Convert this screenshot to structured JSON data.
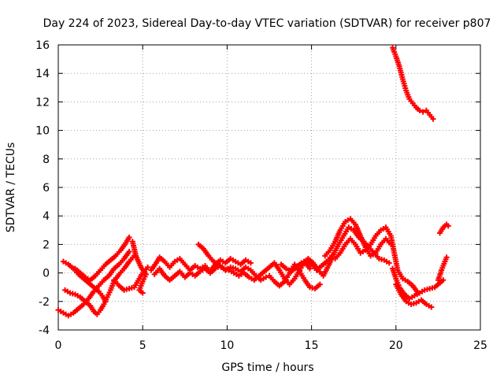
{
  "chart_data": {
    "type": "scatter",
    "title": "Day 224 of 2023, Sidereal Day-to-day VTEC variation (SDTVAR) for receiver p807",
    "xlabel": "GPS time / hours",
    "ylabel": "SDTVAR / TECUs",
    "xlim": [
      0,
      25
    ],
    "ylim": [
      -4,
      16
    ],
    "xticks": [
      0,
      5,
      10,
      15,
      20,
      25
    ],
    "yticks": [
      -4,
      -2,
      0,
      2,
      4,
      6,
      8,
      10,
      12,
      14,
      16
    ],
    "grid": true,
    "marker": "plus",
    "color": "#ff0000",
    "series": [
      {
        "name": "s1",
        "points": [
          [
            0.0,
            -2.6
          ],
          [
            0.3,
            -2.8
          ],
          [
            0.6,
            -3.0
          ],
          [
            0.9,
            -2.8
          ],
          [
            1.2,
            -2.5
          ],
          [
            1.5,
            -2.2
          ],
          [
            1.8,
            -1.8
          ],
          [
            2.1,
            -1.3
          ],
          [
            2.4,
            -0.9
          ],
          [
            2.7,
            -0.5
          ],
          [
            3.0,
            -0.2
          ],
          [
            3.3,
            0.3
          ],
          [
            3.6,
            0.6
          ],
          [
            3.9,
            1.0
          ],
          [
            4.2,
            1.5
          ]
        ]
      },
      {
        "name": "s2",
        "points": [
          [
            0.3,
            0.8
          ],
          [
            0.6,
            0.6
          ],
          [
            0.9,
            0.3
          ],
          [
            1.2,
            -0.1
          ],
          [
            1.5,
            -0.4
          ],
          [
            1.8,
            -0.7
          ],
          [
            2.1,
            -1.0
          ],
          [
            2.4,
            -1.3
          ],
          [
            2.6,
            -1.6
          ],
          [
            2.8,
            -2.0
          ]
        ]
      },
      {
        "name": "s3",
        "points": [
          [
            0.4,
            -1.2
          ],
          [
            0.7,
            -1.4
          ],
          [
            1.0,
            -1.5
          ],
          [
            1.3,
            -1.7
          ],
          [
            1.6,
            -2.0
          ],
          [
            1.9,
            -2.3
          ],
          [
            2.1,
            -2.7
          ],
          [
            2.3,
            -2.9
          ],
          [
            2.5,
            -2.6
          ],
          [
            2.7,
            -2.2
          ],
          [
            2.9,
            -1.7
          ],
          [
            3.1,
            -1.2
          ],
          [
            3.3,
            -0.6
          ],
          [
            3.6,
            -0.1
          ],
          [
            3.9,
            0.3
          ],
          [
            4.2,
            0.8
          ],
          [
            4.5,
            1.2
          ]
        ]
      },
      {
        "name": "s4",
        "points": [
          [
            1.0,
            0.3
          ],
          [
            1.3,
            0.0
          ],
          [
            1.6,
            -0.3
          ],
          [
            1.9,
            -0.5
          ],
          [
            2.2,
            -0.2
          ],
          [
            2.5,
            0.2
          ],
          [
            2.8,
            0.6
          ],
          [
            3.1,
            0.9
          ],
          [
            3.4,
            1.2
          ],
          [
            3.7,
            1.6
          ],
          [
            4.0,
            2.1
          ],
          [
            4.2,
            2.5
          ]
        ]
      },
      {
        "name": "s5",
        "points": [
          [
            3.3,
            -0.5
          ],
          [
            3.6,
            -0.9
          ],
          [
            3.9,
            -1.2
          ],
          [
            4.2,
            -1.1
          ],
          [
            4.5,
            -1.0
          ],
          [
            4.8,
            -0.4
          ],
          [
            5.0,
            0.0
          ],
          [
            5.3,
            0.4
          ]
        ]
      },
      {
        "name": "s6",
        "points": [
          [
            4.4,
            2.2
          ],
          [
            4.6,
            1.2
          ],
          [
            4.9,
            0.4
          ],
          [
            5.2,
            -0.1
          ],
          [
            5.0,
            -0.6
          ],
          [
            4.8,
            -1.2
          ],
          [
            5.0,
            -1.4
          ]
        ]
      },
      {
        "name": "s7",
        "points": [
          [
            5.5,
            0.2
          ],
          [
            5.8,
            0.7
          ],
          [
            6.0,
            1.1
          ],
          [
            6.3,
            0.8
          ],
          [
            6.6,
            0.4
          ],
          [
            6.9,
            0.8
          ],
          [
            7.2,
            1.0
          ],
          [
            7.5,
            0.6
          ],
          [
            7.8,
            0.2
          ],
          [
            8.1,
            0.5
          ],
          [
            8.4,
            0.3
          ],
          [
            8.7,
            0.5
          ],
          [
            9.0,
            0.1
          ],
          [
            9.3,
            0.6
          ],
          [
            9.6,
            0.9
          ],
          [
            9.9,
            0.7
          ],
          [
            10.2,
            1.0
          ],
          [
            10.5,
            0.8
          ],
          [
            10.8,
            0.6
          ],
          [
            11.1,
            0.9
          ],
          [
            11.4,
            0.7
          ]
        ]
      },
      {
        "name": "s8",
        "points": [
          [
            5.7,
            -0.1
          ],
          [
            6.0,
            0.3
          ],
          [
            6.3,
            -0.2
          ],
          [
            6.6,
            -0.5
          ],
          [
            6.9,
            -0.2
          ],
          [
            7.2,
            0.1
          ],
          [
            7.5,
            -0.3
          ],
          [
            7.8,
            0.0
          ],
          [
            8.1,
            -0.2
          ],
          [
            8.4,
            0.1
          ],
          [
            8.7,
            0.3
          ],
          [
            9.0,
            0.0
          ],
          [
            9.3,
            0.3
          ],
          [
            9.6,
            0.5
          ],
          [
            9.9,
            0.2
          ],
          [
            10.2,
            0.4
          ],
          [
            10.5,
            0.3
          ],
          [
            10.8,
            0.1
          ],
          [
            11.1,
            0.4
          ],
          [
            11.4,
            0.2
          ],
          [
            11.7,
            -0.2
          ],
          [
            12.0,
            -0.5
          ],
          [
            12.3,
            -0.3
          ]
        ]
      },
      {
        "name": "s9",
        "points": [
          [
            8.3,
            2.0
          ],
          [
            8.6,
            1.7
          ],
          [
            8.9,
            1.2
          ],
          [
            9.2,
            0.8
          ],
          [
            9.5,
            0.5
          ],
          [
            9.8,
            0.3
          ],
          [
            10.1,
            0.2
          ],
          [
            10.4,
            0.0
          ],
          [
            10.7,
            -0.2
          ],
          [
            11.0,
            0.0
          ],
          [
            11.3,
            -0.3
          ],
          [
            11.6,
            -0.5
          ],
          [
            11.9,
            -0.2
          ],
          [
            12.2,
            0.1
          ],
          [
            12.5,
            0.4
          ],
          [
            12.8,
            0.7
          ],
          [
            13.1,
            0.2
          ],
          [
            13.4,
            -0.4
          ],
          [
            13.7,
            -0.8
          ],
          [
            14.0,
            -0.4
          ],
          [
            14.3,
            0.2
          ],
          [
            14.6,
            0.8
          ],
          [
            14.9,
            0.3
          ]
        ]
      },
      {
        "name": "s10",
        "points": [
          [
            12.5,
            -0.2
          ],
          [
            12.8,
            -0.6
          ],
          [
            13.1,
            -0.9
          ],
          [
            13.4,
            -0.6
          ],
          [
            13.7,
            0.0
          ],
          [
            14.0,
            0.6
          ],
          [
            14.3,
            0.1
          ],
          [
            14.6,
            -0.5
          ],
          [
            14.9,
            -1.0
          ],
          [
            15.2,
            -1.1
          ],
          [
            15.5,
            -0.8
          ]
        ]
      },
      {
        "name": "s11",
        "points": [
          [
            13.2,
            0.6
          ],
          [
            13.5,
            0.3
          ],
          [
            13.8,
            0.1
          ],
          [
            14.1,
            0.4
          ],
          [
            14.4,
            0.7
          ],
          [
            14.7,
            0.9
          ],
          [
            15.0,
            0.6
          ],
          [
            15.3,
            0.2
          ],
          [
            15.6,
            0.5
          ],
          [
            15.9,
            0.8
          ],
          [
            16.2,
            1.2
          ]
        ]
      },
      {
        "name": "s12",
        "points": [
          [
            14.8,
            1.0
          ],
          [
            15.1,
            0.7
          ],
          [
            15.4,
            0.2
          ],
          [
            15.7,
            -0.2
          ],
          [
            16.0,
            0.5
          ],
          [
            16.3,
            1.3
          ],
          [
            16.6,
            2.0
          ],
          [
            16.9,
            2.6
          ],
          [
            17.2,
            3.2
          ],
          [
            17.5,
            3.0
          ],
          [
            17.8,
            2.5
          ],
          [
            18.1,
            2.2
          ],
          [
            18.4,
            1.8
          ],
          [
            18.7,
            1.4
          ],
          [
            19.0,
            1.0
          ],
          [
            19.3,
            0.9
          ],
          [
            19.6,
            0.7
          ]
        ]
      },
      {
        "name": "s13",
        "points": [
          [
            15.8,
            1.2
          ],
          [
            16.1,
            1.6
          ],
          [
            16.4,
            2.2
          ],
          [
            16.7,
            3.0
          ],
          [
            17.0,
            3.6
          ],
          [
            17.3,
            3.8
          ],
          [
            17.6,
            3.4
          ],
          [
            17.9,
            2.6
          ],
          [
            18.2,
            1.8
          ],
          [
            18.5,
            1.2
          ],
          [
            18.8,
            1.4
          ],
          [
            19.1,
            2.0
          ],
          [
            19.4,
            2.4
          ],
          [
            19.7,
            2.0
          ]
        ]
      },
      {
        "name": "s14",
        "points": [
          [
            16.4,
            1.0
          ],
          [
            16.7,
            1.4
          ],
          [
            17.0,
            2.0
          ],
          [
            17.3,
            2.4
          ],
          [
            17.6,
            2.0
          ],
          [
            17.9,
            1.4
          ],
          [
            18.2,
            1.6
          ],
          [
            18.5,
            2.0
          ],
          [
            18.8,
            2.6
          ],
          [
            19.1,
            3.0
          ],
          [
            19.4,
            3.2
          ],
          [
            19.7,
            2.6
          ],
          [
            19.9,
            1.4
          ],
          [
            20.1,
            0.2
          ],
          [
            20.4,
            -0.4
          ],
          [
            20.7,
            -0.6
          ],
          [
            21.0,
            -0.9
          ],
          [
            21.3,
            -1.4
          ]
        ]
      },
      {
        "name": "s15",
        "points": [
          [
            19.8,
            0.3
          ],
          [
            20.0,
            -0.4
          ],
          [
            20.2,
            -1.0
          ],
          [
            20.5,
            -1.5
          ],
          [
            20.8,
            -1.8
          ],
          [
            21.1,
            -1.6
          ],
          [
            21.4,
            -1.4
          ],
          [
            21.7,
            -1.2
          ],
          [
            22.0,
            -1.1
          ],
          [
            22.3,
            -1.0
          ],
          [
            22.6,
            -0.7
          ],
          [
            22.8,
            -0.5
          ]
        ]
      },
      {
        "name": "s16",
        "points": [
          [
            20.0,
            -0.8
          ],
          [
            20.3,
            -1.5
          ],
          [
            20.6,
            -2.0
          ],
          [
            20.9,
            -2.2
          ],
          [
            21.2,
            -2.1
          ],
          [
            21.5,
            -1.9
          ],
          [
            21.8,
            -2.2
          ],
          [
            22.1,
            -2.4
          ]
        ]
      },
      {
        "name": "s17",
        "points": [
          [
            22.5,
            -0.5
          ],
          [
            22.7,
            0.2
          ],
          [
            22.9,
            0.8
          ],
          [
            23.0,
            1.1
          ]
        ]
      },
      {
        "name": "s18",
        "points": [
          [
            22.6,
            2.8
          ],
          [
            22.8,
            3.2
          ],
          [
            23.0,
            3.4
          ],
          [
            23.1,
            3.3
          ]
        ]
      },
      {
        "name": "s19",
        "points": [
          [
            19.8,
            15.8
          ],
          [
            20.0,
            15.2
          ],
          [
            20.2,
            14.5
          ],
          [
            20.4,
            13.6
          ],
          [
            20.6,
            12.8
          ],
          [
            20.8,
            12.2
          ],
          [
            21.0,
            11.9
          ],
          [
            21.2,
            11.6
          ],
          [
            21.4,
            11.4
          ],
          [
            21.6,
            11.3
          ],
          [
            21.8,
            11.4
          ],
          [
            22.0,
            11.1
          ],
          [
            22.2,
            10.8
          ]
        ]
      }
    ]
  }
}
